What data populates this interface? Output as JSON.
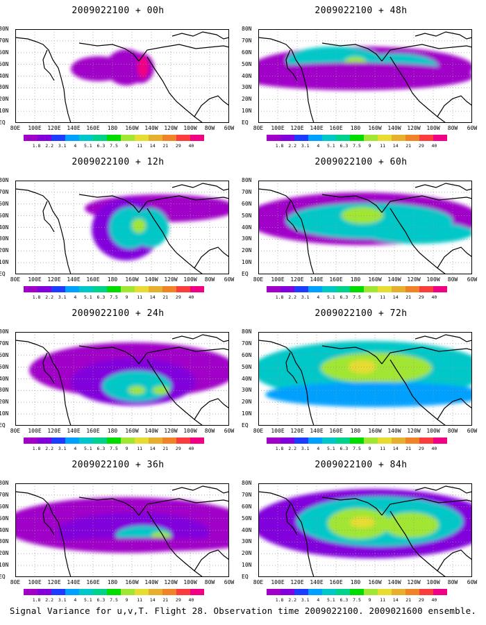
{
  "panels": [
    {
      "title": "2009022100 + 00h"
    },
    {
      "title": "2009022100 + 48h"
    },
    {
      "title": "2009022100 + 12h"
    },
    {
      "title": "2009022100 + 60h"
    },
    {
      "title": "2009022100 + 24h"
    },
    {
      "title": "2009022100 + 72h"
    },
    {
      "title": "2009022100 + 36h"
    },
    {
      "title": "2009022100 + 84h"
    }
  ],
  "lat_labels": [
    "80N",
    "70N",
    "60N",
    "50N",
    "40N",
    "30N",
    "20N",
    "10N",
    "EQ"
  ],
  "lon_labels": [
    "80E",
    "100E",
    "120E",
    "140E",
    "160E",
    "180",
    "160W",
    "140W",
    "120W",
    "100W",
    "80W",
    "60W"
  ],
  "colorbar": {
    "labels": [
      "1.8",
      "2.2",
      "3.1",
      "4",
      "5.1",
      "6.3",
      "7.5",
      "9",
      "11",
      "14",
      "21",
      "29",
      "40"
    ],
    "colors": [
      "#a000c8",
      "#8200dc",
      "#1e3cff",
      "#00a0ff",
      "#00c8c8",
      "#00d28c",
      "#00dc00",
      "#a0e632",
      "#e6dc32",
      "#e6af2d",
      "#f08228",
      "#fa3c3c",
      "#f00082"
    ]
  },
  "footer": "Signal Variance for u,v,T. Flight 28. Observation time 2009022100. 2009021600 ensemble."
}
